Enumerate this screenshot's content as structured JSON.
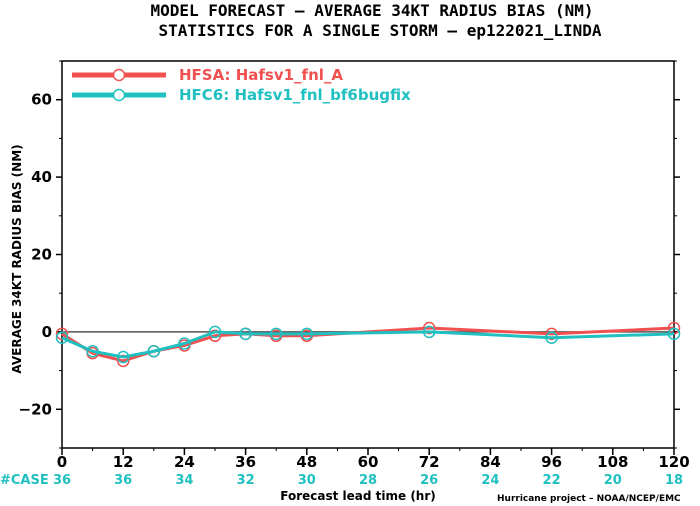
{
  "title_line1": "MODEL FORECAST – AVERAGE 34KT RADIUS BIAS (NM)",
  "title_line2": "STATISTICS FOR A SINGLE STORM – ep122021_LINDA",
  "credit": "Hurricane project – NOAA/NCEP/EMC",
  "case_label": "#CASE",
  "case_color": "#20c0c0",
  "zero_line_color": "#555555",
  "chart_data": {
    "type": "line",
    "xlabel": "Forecast lead time (hr)",
    "ylabel": "AVERAGE 34KT RADIUS BIAS (NM)",
    "xlim": [
      0,
      120
    ],
    "ylim": [
      -30,
      70
    ],
    "x_ticks": [
      0,
      12,
      24,
      36,
      48,
      60,
      72,
      84,
      96,
      108,
      120
    ],
    "y_ticks": [
      -20,
      0,
      20,
      40,
      60
    ],
    "grid": false,
    "legend_position": "top-left",
    "case_counts": [
      {
        "x": 0,
        "n": "36"
      },
      {
        "x": 12,
        "n": "36"
      },
      {
        "x": 24,
        "n": "34"
      },
      {
        "x": 36,
        "n": "32"
      },
      {
        "x": 48,
        "n": "30"
      },
      {
        "x": 60,
        "n": "28"
      },
      {
        "x": 72,
        "n": "26"
      },
      {
        "x": 84,
        "n": "24"
      },
      {
        "x": 96,
        "n": "22"
      },
      {
        "x": 108,
        "n": "20"
      },
      {
        "x": 120,
        "n": "18"
      }
    ],
    "series": [
      {
        "name": "HFSA: Hafsv1_fnl_A",
        "color": "#f05050",
        "x": [
          0,
          6,
          12,
          18,
          24,
          30,
          36,
          42,
          48,
          72,
          96,
          120
        ],
        "y": [
          -0.5,
          -5.5,
          -7.5,
          -5.0,
          -3.5,
          -1.0,
          -0.5,
          -1.0,
          -1.0,
          1.0,
          -0.5,
          1.0
        ]
      },
      {
        "name": "HFC6: Hafsv1_fnl_bf6bugfix",
        "color": "#20c0c0",
        "x": [
          0,
          6,
          12,
          18,
          24,
          30,
          36,
          42,
          48,
          72,
          96,
          120
        ],
        "y": [
          -1.5,
          -5.0,
          -6.5,
          -5.0,
          -3.0,
          0.0,
          -0.5,
          -0.5,
          -0.5,
          0.0,
          -1.5,
          -0.5
        ]
      }
    ]
  }
}
